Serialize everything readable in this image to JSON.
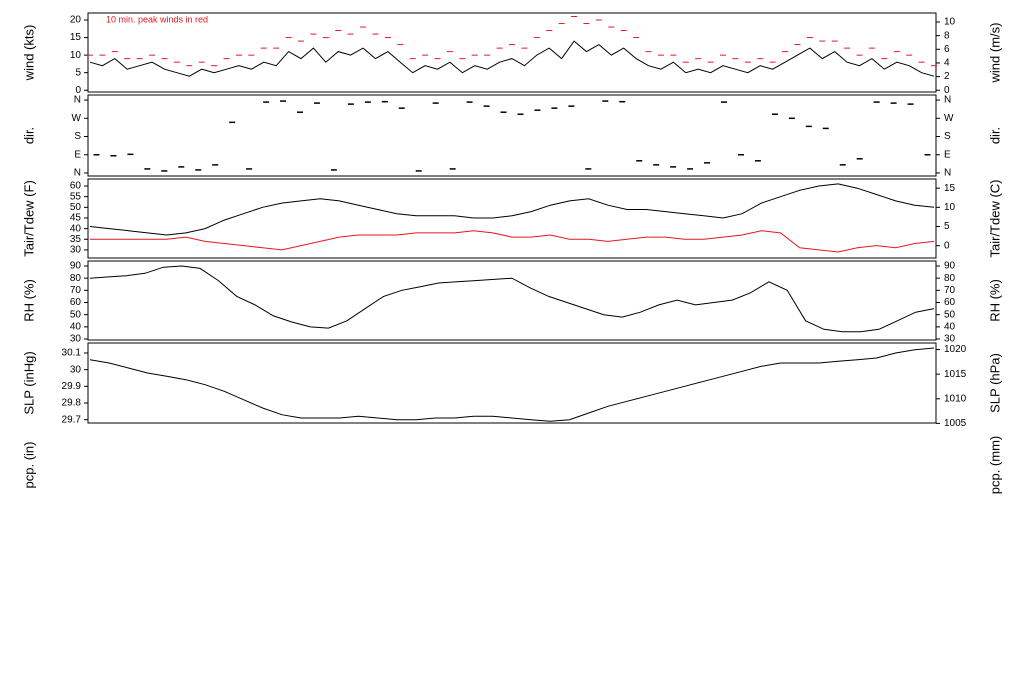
{
  "chart_data": [
    {
      "type": "line",
      "ylabel": "wind (kts)",
      "y2label": "wind (m/s)",
      "annotation": "10 min. peak winds in red",
      "ylim": [
        -0.5,
        22
      ],
      "yticks": [
        0,
        5,
        10,
        15,
        20
      ],
      "y2lim": [
        -0.26,
        11.32
      ],
      "y2ticks": [
        0,
        2,
        4,
        6,
        8,
        10
      ],
      "series": [
        {
          "color": "#000000",
          "values": [
            8,
            7,
            9,
            6,
            7,
            8,
            6,
            5,
            4,
            6,
            5,
            6,
            7,
            6,
            8,
            7,
            11,
            9,
            12,
            8,
            11,
            10,
            12,
            9,
            11,
            8,
            5,
            7,
            6,
            8,
            5,
            7,
            6,
            8,
            9,
            7,
            10,
            12,
            9,
            14,
            11,
            13,
            10,
            12,
            9,
            7,
            6,
            8,
            5,
            6,
            5,
            7,
            6,
            5,
            7,
            6,
            8,
            10,
            12,
            9,
            11,
            8,
            7,
            9,
            6,
            8,
            7,
            5,
            4
          ]
        },
        {
          "color": "#e0191f",
          "marker": "dash",
          "values": [
            10,
            10,
            11,
            9,
            9,
            10,
            9,
            8,
            7,
            8,
            7,
            9,
            10,
            10,
            12,
            12,
            15,
            14,
            16,
            15,
            17,
            16,
            18,
            16,
            15,
            13,
            9,
            10,
            9,
            11,
            9,
            10,
            10,
            12,
            13,
            12,
            15,
            17,
            19,
            21,
            19,
            20,
            18,
            17,
            15,
            11,
            10,
            10,
            8,
            9,
            8,
            10,
            9,
            8,
            9,
            8,
            11,
            13,
            15,
            14,
            14,
            12,
            10,
            12,
            9,
            11,
            10,
            8,
            7
          ]
        }
      ]
    },
    {
      "type": "scatter",
      "ylabel": "dir.",
      "y2label": "dir.",
      "ylim": [
        -15,
        385
      ],
      "yticks": [
        {
          "value": 0,
          "label": "N"
        },
        {
          "value": 90,
          "label": "E"
        },
        {
          "value": 180,
          "label": "S"
        },
        {
          "value": 270,
          "label": "W"
        },
        {
          "value": 360,
          "label": "N"
        }
      ],
      "xlim": [
        0,
        100
      ],
      "series": [
        {
          "color": "#000000",
          "x": [
            1,
            3,
            5,
            7,
            9,
            11,
            13,
            15,
            17,
            19,
            21,
            23,
            25,
            27,
            29,
            31,
            33,
            35,
            37,
            39,
            41,
            43,
            45,
            47,
            49,
            51,
            53,
            55,
            57,
            59,
            61,
            63,
            65,
            67,
            69,
            71,
            73,
            75,
            77,
            79,
            81,
            83,
            85,
            87,
            89,
            91,
            93,
            95,
            97,
            99
          ],
          "values": [
            90,
            85,
            92,
            20,
            10,
            30,
            15,
            40,
            250,
            20,
            350,
            355,
            300,
            345,
            15,
            340,
            350,
            352,
            320,
            10,
            345,
            20,
            350,
            330,
            300,
            290,
            310,
            320,
            330,
            20,
            355,
            352,
            60,
            40,
            30,
            20,
            50,
            350,
            90,
            60,
            290,
            270,
            230,
            220,
            40,
            70,
            350,
            345,
            340,
            90
          ]
        }
      ]
    },
    {
      "type": "line",
      "ylabel": "Tair/Tdew (F)",
      "y2label": "Tair/Tdew (C)",
      "ylim": [
        26.2,
        63.3
      ],
      "yticks": [
        30,
        35,
        40,
        45,
        50,
        55,
        60
      ],
      "y2lim": [
        -3.22,
        17.39
      ],
      "y2ticks": [
        0,
        5,
        10,
        15
      ],
      "series": [
        {
          "color": "#000000",
          "values": [
            41,
            40,
            39,
            38,
            37,
            38,
            40,
            44,
            47,
            50,
            52,
            53,
            54,
            53,
            51,
            49,
            47,
            46,
            46,
            46,
            45,
            45,
            46,
            48,
            51,
            53,
            54,
            51,
            49,
            49,
            48,
            47,
            46,
            45,
            47,
            52,
            55,
            58,
            60,
            61,
            59,
            56,
            53,
            51,
            50
          ]
        },
        {
          "color": "#e0191f",
          "values": [
            35,
            35,
            35,
            35,
            35,
            36,
            34,
            33,
            32,
            31,
            30,
            32,
            34,
            36,
            37,
            37,
            37,
            38,
            38,
            38,
            39,
            38,
            36,
            36,
            37,
            35,
            35,
            34,
            35,
            36,
            36,
            35,
            35,
            36,
            37,
            39,
            38,
            31,
            30,
            29,
            31,
            32,
            31,
            33,
            34
          ]
        }
      ]
    },
    {
      "type": "line",
      "ylabel": "RH (%)",
      "y2label": "RH (%)",
      "ylim": [
        29.2,
        94.1
      ],
      "yticks": [
        30,
        40,
        50,
        60,
        70,
        80,
        90
      ],
      "y2lim": [
        29.2,
        94.1
      ],
      "y2ticks": [
        30,
        40,
        50,
        60,
        70,
        80,
        90
      ],
      "series": [
        {
          "color": "#000000",
          "values": [
            80,
            81,
            82,
            84,
            89,
            90,
            88,
            78,
            65,
            58,
            49,
            44,
            40,
            39,
            45,
            55,
            65,
            70,
            73,
            76,
            77,
            78,
            79,
            80,
            72,
            65,
            60,
            55,
            50,
            48,
            52,
            58,
            62,
            58,
            60,
            62,
            68,
            77,
            70,
            45,
            38,
            36,
            36,
            38,
            45,
            52,
            55
          ]
        }
      ]
    },
    {
      "type": "line",
      "ylabel": "SLP (inHg)",
      "y2label": "SLP (hPa)",
      "ylim": [
        29.68,
        30.16
      ],
      "yticks": [
        29.7,
        29.8,
        29.9,
        30.0,
        30.1
      ],
      "y2lim": [
        1005.08,
        1021.33
      ],
      "y2ticks": [
        1005,
        1010,
        1015,
        1020
      ],
      "series": [
        {
          "color": "#000000",
          "values": [
            30.06,
            30.04,
            30.01,
            29.98,
            29.96,
            29.94,
            29.91,
            29.87,
            29.82,
            29.77,
            29.73,
            29.71,
            29.71,
            29.71,
            29.72,
            29.71,
            29.7,
            29.7,
            29.71,
            29.71,
            29.72,
            29.72,
            29.71,
            29.7,
            29.69,
            29.7,
            29.74,
            29.78,
            29.81,
            29.84,
            29.87,
            29.9,
            29.93,
            29.96,
            29.99,
            30.02,
            30.04,
            30.04,
            30.04,
            30.05,
            30.06,
            30.07,
            30.1,
            30.12,
            30.13
          ]
        }
      ]
    },
    {
      "type": "empty",
      "ylabel": "pcp. (in)",
      "y2label": "pcp. (mm)"
    }
  ]
}
